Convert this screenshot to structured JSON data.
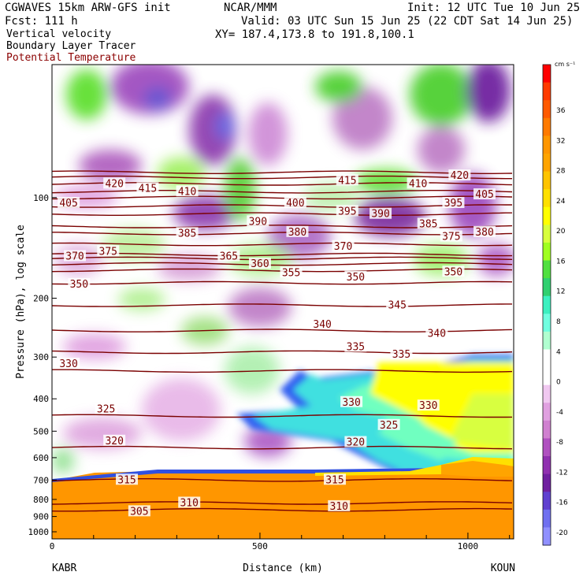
{
  "header": {
    "model": "CGWAVES 15km ARW-GFS init",
    "org": "NCAR/MMM",
    "init": "Init: 12 UTC Tue 10 Jun 25",
    "fcst": "Fcst:  111 h",
    "valid": "Valid: 03 UTC Sun 15 Jun 25 (22 CDT Sat 14 Jun 25)",
    "field1": "Vertical velocity",
    "xy": "XY= 187.4,173.8 to 191.8,100.1",
    "field2": "Boundary Layer Tracer",
    "field3": "Potential Temperature"
  },
  "colors": {
    "theta": "#7a0000",
    "field3_label": "#8b0000"
  },
  "chart_data": {
    "type": "heatmap",
    "title": "",
    "xlabel": "Distance (km)",
    "ylabel": "Pressure (hPa), log scale",
    "x_ticks": [
      "0",
      "500",
      "1000"
    ],
    "x_endpoints": [
      "KABR",
      "KOUN"
    ],
    "xlim": [
      0,
      1110
    ],
    "y_scale": "log",
    "y_ticks": [
      "100",
      "200",
      "300",
      "400",
      "500",
      "600",
      "700",
      "800",
      "900",
      "1000"
    ],
    "colorbar": {
      "unit": "cm s⁻¹",
      "labels": [
        "36",
        "32",
        "28",
        "24",
        "20",
        "16",
        "12",
        "8",
        "4",
        "0",
        "-4",
        "-8",
        "-12",
        "-16",
        "-20"
      ],
      "colors": [
        "#ff0000",
        "#ff3a00",
        "#ff5a00",
        "#ff7a00",
        "#ff9600",
        "#ffa400",
        "#ffc400",
        "#ffe000",
        "#ffff00",
        "#d8ff3c",
        "#a0ff20",
        "#50e040",
        "#30d070",
        "#3cf0c0",
        "#70ffe0",
        "#b0ffd0",
        "#ffffff",
        "#ffffff",
        "#f0c8f0",
        "#e0a0e0",
        "#d080d0",
        "#b050c0",
        "#9030b0",
        "#7020a0",
        "#6040d0",
        "#7070f0",
        "#9090ff"
      ]
    },
    "theta_contours": [
      {
        "value": 305,
        "y_hpa": 860
      },
      {
        "value": 310,
        "y_hpa": 820
      },
      {
        "value": 315,
        "y_hpa": 700
      },
      {
        "value": 320,
        "y_hpa": 560
      },
      {
        "value": 325,
        "y_hpa": 450
      },
      {
        "value": 330,
        "y_hpa": 330
      },
      {
        "value": 335,
        "y_hpa": 290
      },
      {
        "value": 340,
        "y_hpa": 250
      },
      {
        "value": 345,
        "y_hpa": 210
      },
      {
        "value": 350,
        "y_hpa": 180
      },
      {
        "value": 355,
        "y_hpa": 165
      },
      {
        "value": 360,
        "y_hpa": 158
      },
      {
        "value": 365,
        "y_hpa": 152
      },
      {
        "value": 370,
        "y_hpa": 148
      },
      {
        "value": 375,
        "y_hpa": 138
      },
      {
        "value": 380,
        "y_hpa": 128
      },
      {
        "value": 385,
        "y_hpa": 122
      },
      {
        "value": 390,
        "y_hpa": 112
      },
      {
        "value": 395,
        "y_hpa": 106
      },
      {
        "value": 400,
        "y_hpa": 100
      },
      {
        "value": 405,
        "y_hpa": 96
      },
      {
        "value": 410,
        "y_hpa": 91
      },
      {
        "value": 415,
        "y_hpa": 87
      },
      {
        "value": 420,
        "y_hpa": 84
      }
    ],
    "theta_labels": [
      {
        "text": "305",
        "x_km": 210,
        "y_hpa": 870
      },
      {
        "text": "310",
        "x_km": 330,
        "y_hpa": 820
      },
      {
        "text": "310",
        "x_km": 690,
        "y_hpa": 840
      },
      {
        "text": "315",
        "x_km": 180,
        "y_hpa": 700
      },
      {
        "text": "315",
        "x_km": 680,
        "y_hpa": 700
      },
      {
        "text": "320",
        "x_km": 150,
        "y_hpa": 535
      },
      {
        "text": "320",
        "x_km": 730,
        "y_hpa": 540
      },
      {
        "text": "325",
        "x_km": 130,
        "y_hpa": 430
      },
      {
        "text": "325",
        "x_km": 810,
        "y_hpa": 480
      },
      {
        "text": "330",
        "x_km": 40,
        "y_hpa": 315
      },
      {
        "text": "330",
        "x_km": 720,
        "y_hpa": 410
      },
      {
        "text": "330",
        "x_km": 905,
        "y_hpa": 420
      },
      {
        "text": "335",
        "x_km": 730,
        "y_hpa": 280
      },
      {
        "text": "335",
        "x_km": 840,
        "y_hpa": 295
      },
      {
        "text": "340",
        "x_km": 650,
        "y_hpa": 240
      },
      {
        "text": "340",
        "x_km": 925,
        "y_hpa": 255
      },
      {
        "text": "345",
        "x_km": 830,
        "y_hpa": 210
      },
      {
        "text": "350",
        "x_km": 65,
        "y_hpa": 182
      },
      {
        "text": "350",
        "x_km": 730,
        "y_hpa": 173
      },
      {
        "text": "350",
        "x_km": 965,
        "y_hpa": 167
      },
      {
        "text": "355",
        "x_km": 575,
        "y_hpa": 168
      },
      {
        "text": "360",
        "x_km": 500,
        "y_hpa": 158
      },
      {
        "text": "365",
        "x_km": 425,
        "y_hpa": 150
      },
      {
        "text": "370",
        "x_km": 55,
        "y_hpa": 150
      },
      {
        "text": "370",
        "x_km": 700,
        "y_hpa": 140
      },
      {
        "text": "375",
        "x_km": 135,
        "y_hpa": 145
      },
      {
        "text": "375",
        "x_km": 960,
        "y_hpa": 131
      },
      {
        "text": "380",
        "x_km": 590,
        "y_hpa": 127
      },
      {
        "text": "380",
        "x_km": 1040,
        "y_hpa": 127
      },
      {
        "text": "385",
        "x_km": 325,
        "y_hpa": 128
      },
      {
        "text": "385",
        "x_km": 905,
        "y_hpa": 120
      },
      {
        "text": "390",
        "x_km": 495,
        "y_hpa": 118
      },
      {
        "text": "390",
        "x_km": 790,
        "y_hpa": 112
      },
      {
        "text": "395",
        "x_km": 710,
        "y_hpa": 110
      },
      {
        "text": "395",
        "x_km": 965,
        "y_hpa": 104
      },
      {
        "text": "400",
        "x_km": 585,
        "y_hpa": 104
      },
      {
        "text": "405",
        "x_km": 40,
        "y_hpa": 104
      },
      {
        "text": "405",
        "x_km": 1040,
        "y_hpa": 98
      },
      {
        "text": "410",
        "x_km": 325,
        "y_hpa": 96
      },
      {
        "text": "410",
        "x_km": 880,
        "y_hpa": 91
      },
      {
        "text": "415",
        "x_km": 230,
        "y_hpa": 94
      },
      {
        "text": "415",
        "x_km": 710,
        "y_hpa": 89
      },
      {
        "text": "420",
        "x_km": 150,
        "y_hpa": 91
      },
      {
        "text": "420",
        "x_km": 980,
        "y_hpa": 86
      }
    ]
  }
}
